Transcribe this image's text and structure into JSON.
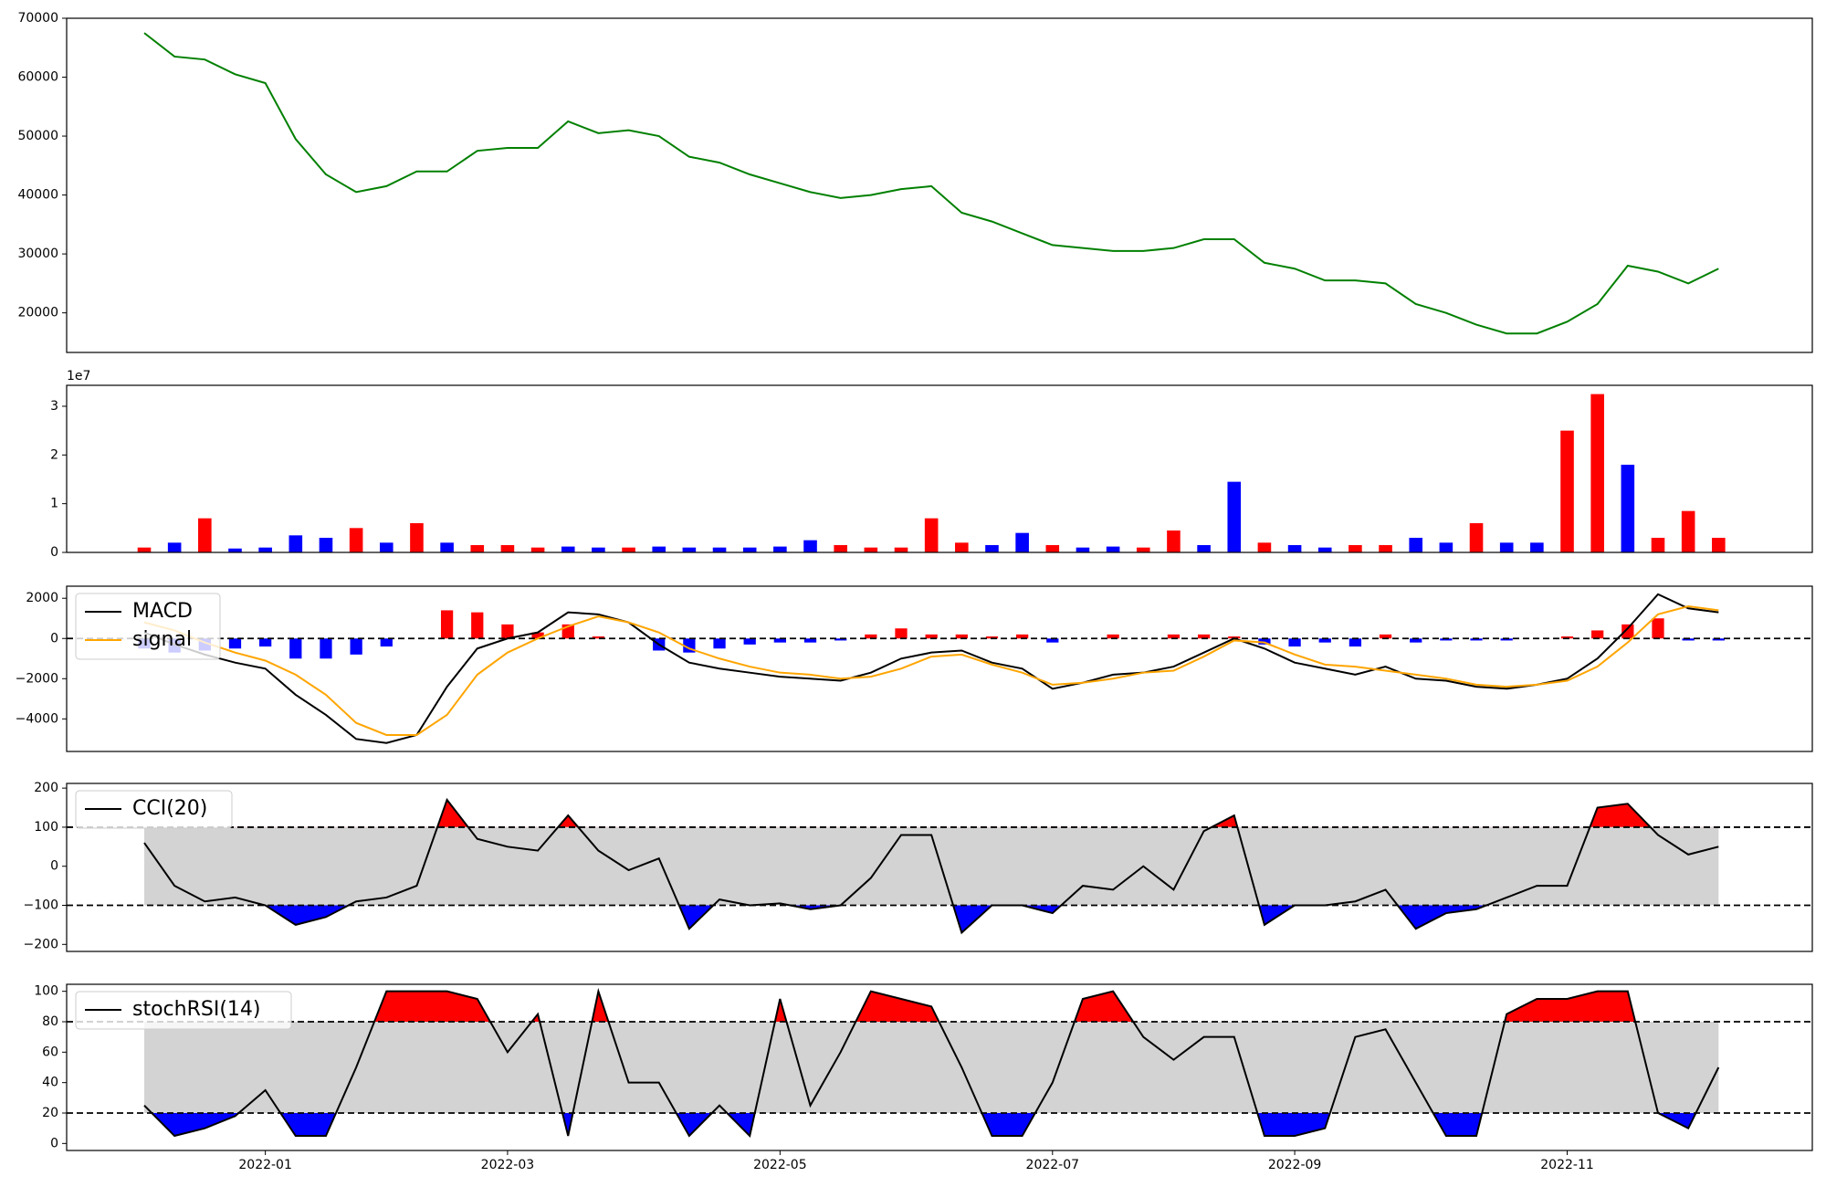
{
  "chart_data": [
    {
      "type": "line",
      "color": "green",
      "values": [
        67500,
        63500,
        63000,
        60500,
        59000,
        49500,
        43500,
        40500,
        41500,
        44000,
        44000,
        47500,
        48000,
        48000,
        52500,
        50500,
        51000,
        50000,
        46500,
        45500,
        43500,
        42000,
        40500,
        39500,
        40000,
        41000,
        41500,
        37000,
        35500,
        33500,
        31500,
        31000,
        30500,
        30500,
        31000,
        32500,
        32500,
        28500,
        27500,
        25500,
        25500,
        25000,
        21500,
        20000,
        18000,
        16500,
        16500,
        18500,
        21500,
        28000,
        27000,
        25000,
        27500
      ],
      "ylim": [
        13280,
        70000
      ],
      "yticks": [
        20000,
        30000,
        40000,
        50000,
        60000,
        70000
      ]
    },
    {
      "type": "bar",
      "offset_label": "1e7",
      "values": [
        0.1,
        0.2,
        0.7,
        0.08,
        0.1,
        0.35,
        0.3,
        0.5,
        0.2,
        0.6,
        0.2,
        0.15,
        0.15,
        0.1,
        0.12,
        0.1,
        0.1,
        0.12,
        0.1,
        0.1,
        0.1,
        0.12,
        0.25,
        0.15,
        0.1,
        0.1,
        0.7,
        0.2,
        0.15,
        0.4,
        0.15,
        0.1,
        0.12,
        0.1,
        0.45,
        0.15,
        1.45,
        0.2,
        0.15,
        0.1,
        0.15,
        0.15,
        0.3,
        0.2,
        0.6,
        0.2,
        0.2,
        2.5,
        3.25,
        1.8,
        0.3,
        0.85,
        0.3
      ],
      "colors": [
        "red",
        "blue",
        "red",
        "blue",
        "blue",
        "blue",
        "blue",
        "red",
        "blue",
        "red",
        "blue",
        "red",
        "red",
        "red",
        "blue",
        "blue",
        "red",
        "blue",
        "blue",
        "blue",
        "blue",
        "blue",
        "blue",
        "red",
        "red",
        "red",
        "red",
        "red",
        "blue",
        "blue",
        "red",
        "blue",
        "blue",
        "red",
        "red",
        "blue",
        "blue",
        "red",
        "blue",
        "blue",
        "red",
        "red",
        "blue",
        "blue",
        "red",
        "blue",
        "blue",
        "red",
        "red",
        "blue",
        "red",
        "red",
        "red"
      ],
      "ylim": [
        0,
        3.43
      ],
      "yticks": [
        0,
        1,
        2,
        3
      ]
    },
    {
      "type": "line",
      "series": [
        {
          "name": "MACD",
          "color": "black",
          "values": [
            300,
            -300,
            -800,
            -1200,
            -1500,
            -2800,
            -3800,
            -5000,
            -5200,
            -4800,
            -2400,
            -500,
            0,
            300,
            1300,
            1200,
            800,
            -300,
            -1200,
            -1500,
            -1700,
            -1900,
            -2000,
            -2100,
            -1700,
            -1000,
            -700,
            -600,
            -1200,
            -1500,
            -2500,
            -2200,
            -1800,
            -1700,
            -1400,
            -700,
            0,
            -500,
            -1200,
            -1500,
            -1800,
            -1400,
            -2000,
            -2100,
            -2400,
            -2500,
            -2300,
            -2000,
            -1000,
            500,
            2200,
            1500,
            1300
          ]
        },
        {
          "name": "signal",
          "color": "orange",
          "values": [
            800,
            400,
            -200,
            -700,
            -1100,
            -1800,
            -2800,
            -4200,
            -4800,
            -4800,
            -3800,
            -1800,
            -700,
            0,
            600,
            1100,
            800,
            300,
            -500,
            -1000,
            -1400,
            -1700,
            -1800,
            -2000,
            -1900,
            -1500,
            -900,
            -800,
            -1300,
            -1700,
            -2300,
            -2200,
            -2000,
            -1700,
            -1600,
            -900,
            -100,
            -200,
            -800,
            -1300,
            -1400,
            -1600,
            -1800,
            -2000,
            -2300,
            -2400,
            -2300,
            -2100,
            -1400,
            -200,
            1200,
            1600,
            1400
          ]
        }
      ],
      "histogram": {
        "positive_color": "red",
        "negative_color": "blue",
        "values": [
          -500,
          -700,
          -600,
          -500,
          -400,
          -1000,
          -1000,
          -800,
          -400,
          0,
          1400,
          1300,
          700,
          300,
          700,
          100,
          0,
          -600,
          -700,
          -500,
          -300,
          -200,
          -200,
          -100,
          200,
          500,
          200,
          200,
          100,
          200,
          -200,
          0,
          200,
          0,
          200,
          200,
          100,
          -300,
          -400,
          -200,
          -400,
          200,
          -200,
          -100,
          -100,
          -100,
          0,
          100,
          400,
          700,
          1000,
          -100,
          -100
        ]
      },
      "bands": [
        0
      ],
      "legend": "upper left",
      "ylim": [
        -5620,
        2600
      ],
      "yticks": [
        {
          "value": -4000,
          "label": "−4000"
        },
        {
          "value": -2000,
          "label": "−2000"
        },
        0,
        2000
      ]
    },
    {
      "type": "line",
      "series": [
        {
          "name": "CCI(20)",
          "color": "black",
          "values": [
            60,
            -50,
            -90,
            -80,
            -100,
            -150,
            -130,
            -90,
            -80,
            -50,
            170,
            70,
            50,
            40,
            130,
            40,
            -10,
            20,
            -160,
            -85,
            -100,
            -95,
            -110,
            -100,
            -30,
            80,
            80,
            -170,
            -100,
            -100,
            -120,
            -50,
            -60,
            0,
            -60,
            90,
            130,
            -150,
            -100,
            -100,
            -90,
            -60,
            -160,
            -120,
            -110,
            -80,
            -50,
            -50,
            150,
            160,
            80,
            30,
            50
          ]
        }
      ],
      "bands": [
        -100,
        100
      ],
      "band_fill": "lightgray",
      "upper_fill": "red",
      "lower_fill": "blue",
      "legend": "upper left",
      "ylim": [
        -218,
        212
      ],
      "yticks": [
        {
          "value": -200,
          "label": "−200"
        },
        {
          "value": -100,
          "label": "−100"
        },
        0,
        100,
        200
      ]
    },
    {
      "type": "line",
      "series": [
        {
          "name": "stochRSI(14)",
          "color": "black",
          "values": [
            25,
            5,
            10,
            18,
            35,
            5,
            5,
            50,
            100,
            100,
            100,
            95,
            60,
            85,
            5,
            100,
            40,
            40,
            5,
            25,
            5,
            95,
            25,
            60,
            100,
            95,
            90,
            50,
            5,
            5,
            40,
            95,
            100,
            70,
            55,
            70,
            70,
            5,
            5,
            10,
            70,
            75,
            40,
            5,
            5,
            85,
            95,
            95,
            100,
            100,
            20,
            10,
            50
          ]
        }
      ],
      "bands": [
        20,
        80
      ],
      "band_fill": "lightgray",
      "upper_fill": "red",
      "lower_fill": "blue",
      "legend": "upper left",
      "ylim": [
        -4.6,
        104.6
      ],
      "yticks": [
        0,
        20,
        40,
        60,
        80,
        100
      ],
      "categories": [
        null,
        null,
        null,
        null,
        "2022-01",
        null,
        null,
        null,
        null,
        null,
        null,
        null,
        "2022-03",
        null,
        null,
        null,
        null,
        null,
        null,
        null,
        null,
        "2022-05",
        null,
        null,
        null,
        null,
        null,
        null,
        null,
        null,
        "2022-07",
        null,
        null,
        null,
        null,
        null,
        null,
        null,
        "2022-09",
        null,
        null,
        null,
        null,
        null,
        null,
        null,
        null,
        "2022-11",
        null,
        null,
        null,
        null,
        null
      ]
    }
  ]
}
